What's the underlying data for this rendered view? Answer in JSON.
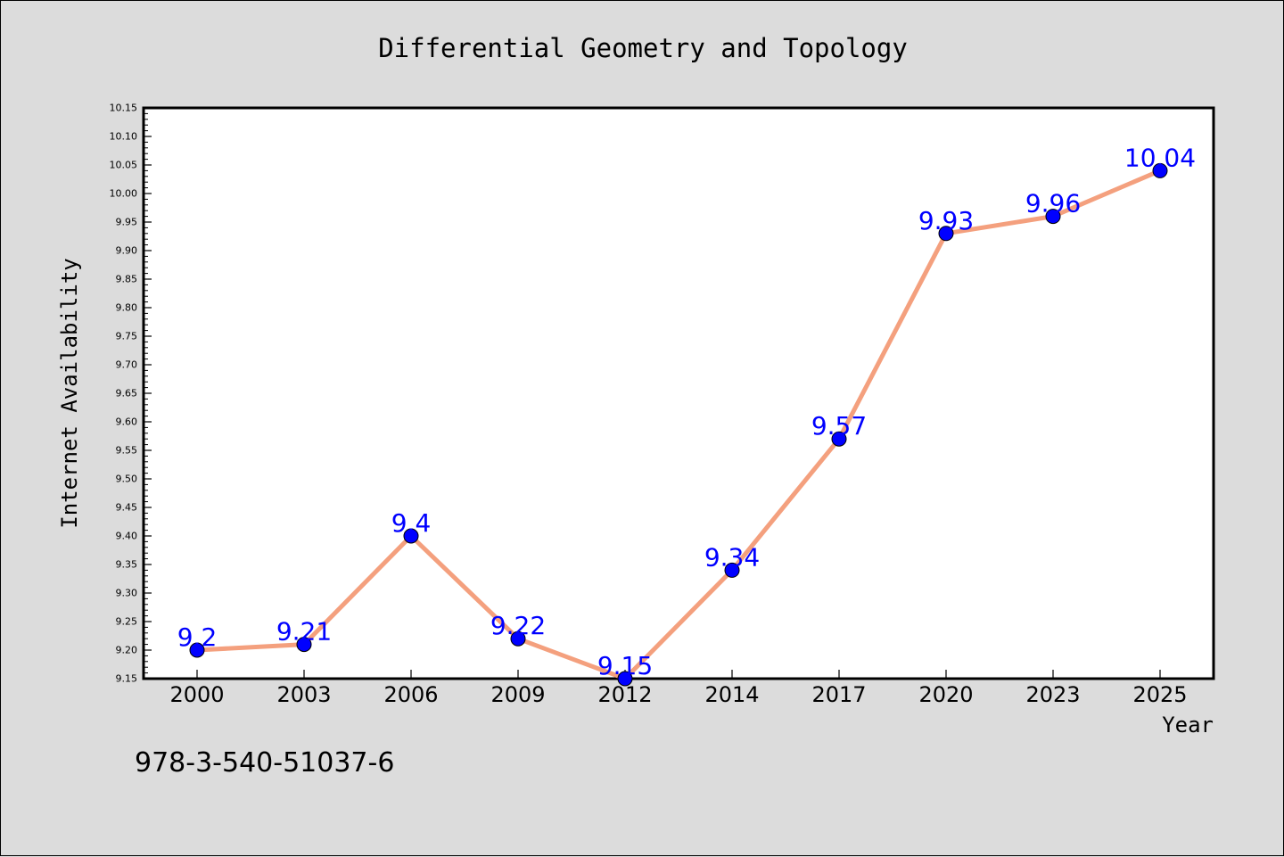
{
  "chart_data": {
    "type": "line",
    "title": "Differential Geometry and Topology",
    "xlabel": "Year",
    "ylabel": "Internet Availability",
    "categories": [
      "2000",
      "2003",
      "2006",
      "2009",
      "2012",
      "2014",
      "2017",
      "2020",
      "2023",
      "2025"
    ],
    "series": [
      {
        "values": [
          9.2,
          9.21,
          9.4,
          9.22,
          9.15,
          9.34,
          9.57,
          9.93,
          9.96,
          10.04
        ],
        "labels": [
          "9.2",
          "9.21",
          "9.4",
          "9.22",
          "9.15",
          "9.34",
          "9.57",
          "9.93",
          "9.96",
          "10.04"
        ],
        "line_color": "#f4a07e",
        "marker_color": "#0000ff"
      }
    ],
    "ylim": [
      9.15,
      10.15
    ],
    "yticks": [
      "9.15",
      "9.20",
      "9.25",
      "9.30",
      "9.35",
      "9.40",
      "9.45",
      "9.50",
      "9.55",
      "9.60",
      "9.65",
      "9.70",
      "9.75",
      "9.80",
      "9.85",
      "9.90",
      "9.95",
      "10.00",
      "10.05",
      "10.10",
      "10.15"
    ],
    "grid": false,
    "legend": "none"
  },
  "footer_text": "978-3-540-51037-6"
}
